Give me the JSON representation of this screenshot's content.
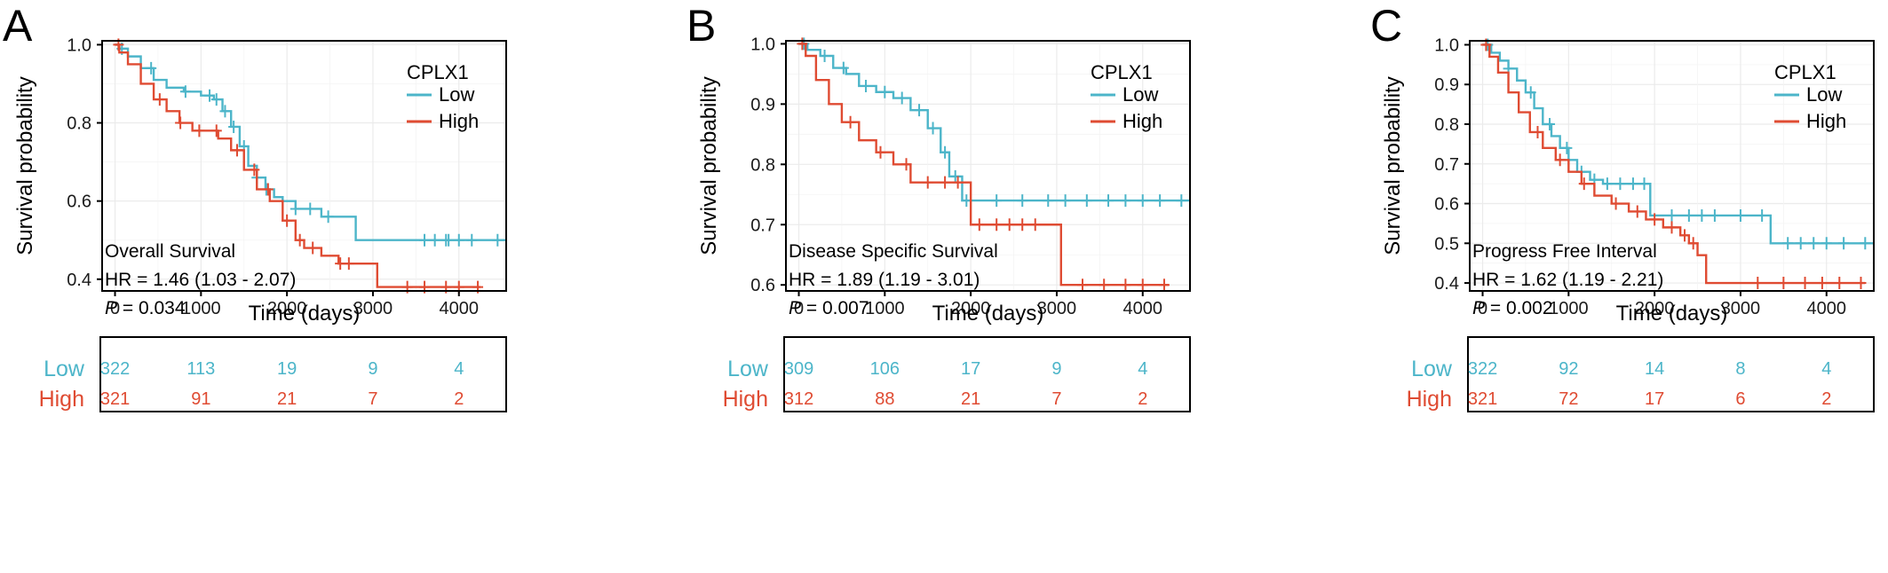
{
  "colors": {
    "low": "#4cb5c9",
    "high": "#df4b32",
    "grid": "#ebebeb",
    "axis": "#000000"
  },
  "chart_data": [
    {
      "type": "line",
      "panel_label": "A",
      "ylabel": "Survival probability",
      "xlabel": "Time (days)",
      "xlim": [
        -150,
        4550
      ],
      "ylim": [
        0.37,
        1.01
      ],
      "xticks": [
        0,
        1000,
        2000,
        3000,
        4000
      ],
      "yticks": [
        0.4,
        0.6,
        0.8,
        1.0
      ],
      "ytick_labels": [
        "0.4",
        "0.6",
        "0.8",
        "1.0"
      ],
      "grid": true,
      "legend": {
        "title": "CPLX1",
        "position": "top-right",
        "entries": [
          "Low",
          "High"
        ]
      },
      "annotation": {
        "name": "Overall Survival",
        "hr": "HR = 1.46 (1.03 -  2.07)",
        "p_label": "P",
        "p_value": " = 0.034"
      },
      "series": [
        {
          "name": "Low",
          "x": [
            0,
            50,
            150,
            300,
            450,
            600,
            800,
            1000,
            1150,
            1250,
            1350,
            1450,
            1550,
            1650,
            1750,
            1850,
            1950,
            2100,
            2400,
            2800,
            3500,
            4550
          ],
          "y": [
            1.0,
            0.99,
            0.97,
            0.94,
            0.91,
            0.89,
            0.88,
            0.87,
            0.86,
            0.83,
            0.79,
            0.74,
            0.69,
            0.66,
            0.63,
            0.61,
            0.6,
            0.58,
            0.56,
            0.5,
            0.5,
            0.5
          ],
          "censor": [
            80,
            420,
            820,
            1100,
            1180,
            1280,
            1380,
            1500,
            1650,
            1760,
            2100,
            2270,
            2480,
            3600,
            3720,
            3850,
            3880,
            4000,
            4150,
            4450
          ]
        },
        {
          "name": "High",
          "x": [
            0,
            50,
            150,
            300,
            450,
            600,
            750,
            900,
            1050,
            1200,
            1350,
            1500,
            1650,
            1800,
            1950,
            2100,
            2200,
            2400,
            2600,
            3050,
            4250
          ],
          "y": [
            1.0,
            0.98,
            0.95,
            0.9,
            0.86,
            0.83,
            0.8,
            0.78,
            0.78,
            0.76,
            0.73,
            0.68,
            0.63,
            0.6,
            0.55,
            0.5,
            0.48,
            0.46,
            0.44,
            0.38,
            0.38
          ],
          "censor": [
            40,
            520,
            760,
            980,
            1180,
            1420,
            1620,
            1780,
            2000,
            2150,
            2300,
            2620,
            2720,
            3400,
            3600,
            3850,
            4000,
            4220
          ]
        }
      ],
      "risk_table": {
        "rows": [
          {
            "name": "Low",
            "counts": [
              "322",
              "113",
              "19",
              "9",
              "4"
            ]
          },
          {
            "name": "High",
            "counts": [
              "321",
              "91",
              "21",
              "7",
              "2"
            ]
          }
        ]
      }
    },
    {
      "type": "line",
      "panel_label": "B",
      "ylabel": "Survival probability",
      "xlabel": "Time (days)",
      "xlim": [
        -150,
        4550
      ],
      "ylim": [
        0.59,
        1.005
      ],
      "xticks": [
        0,
        1000,
        2000,
        3000,
        4000
      ],
      "yticks": [
        0.6,
        0.7,
        0.8,
        0.9,
        1.0
      ],
      "ytick_labels": [
        "0.6",
        "0.7",
        "0.8",
        "0.9",
        "1.0"
      ],
      "grid": true,
      "legend": {
        "title": "CPLX1",
        "position": "top-right",
        "entries": [
          "Low",
          "High"
        ]
      },
      "annotation": {
        "name": "Disease Specific Survival",
        "hr": "HR = 1.89 (1.19 -  3.01)",
        "p_label": "P",
        "p_value": " = 0.007"
      },
      "series": [
        {
          "name": "Low",
          "x": [
            0,
            100,
            250,
            400,
            550,
            700,
            900,
            1100,
            1300,
            1500,
            1650,
            1750,
            1900,
            4550
          ],
          "y": [
            1.0,
            0.99,
            0.98,
            0.96,
            0.95,
            0.93,
            0.92,
            0.91,
            0.89,
            0.86,
            0.82,
            0.78,
            0.74,
            0.74
          ],
          "censor": [
            60,
            300,
            520,
            780,
            1000,
            1200,
            1400,
            1560,
            1700,
            1820,
            1950,
            2300,
            2600,
            2900,
            3100,
            3350,
            3600,
            3800,
            4000,
            4200,
            4450
          ]
        },
        {
          "name": "High",
          "x": [
            0,
            80,
            200,
            350,
            500,
            700,
            900,
            1100,
            1300,
            1900,
            2000,
            3050,
            4300
          ],
          "y": [
            1.0,
            0.98,
            0.94,
            0.9,
            0.87,
            0.84,
            0.82,
            0.8,
            0.77,
            0.77,
            0.7,
            0.6,
            0.6
          ],
          "censor": [
            40,
            600,
            950,
            1250,
            1500,
            1700,
            1850,
            2100,
            2300,
            2450,
            2600,
            2750,
            3300,
            3550,
            3800,
            4000,
            4250
          ]
        }
      ],
      "risk_table": {
        "rows": [
          {
            "name": "Low",
            "counts": [
              "309",
              "106",
              "17",
              "9",
              "4"
            ]
          },
          {
            "name": "High",
            "counts": [
              "312",
              "88",
              "21",
              "7",
              "2"
            ]
          }
        ]
      }
    },
    {
      "type": "line",
      "panel_label": "C",
      "ylabel": "Survival probability",
      "xlabel": "Time (days)",
      "xlim": [
        -150,
        4550
      ],
      "ylim": [
        0.38,
        1.01
      ],
      "xticks": [
        0,
        1000,
        2000,
        3000,
        4000
      ],
      "yticks": [
        0.4,
        0.5,
        0.6,
        0.7,
        0.8,
        0.9,
        1.0
      ],
      "ytick_labels": [
        "0.4",
        "0.5",
        "0.6",
        "0.7",
        "0.8",
        "0.9",
        "1.0"
      ],
      "grid": true,
      "legend": {
        "title": "CPLX1",
        "position": "top-right",
        "entries": [
          "Low",
          "High"
        ]
      },
      "annotation": {
        "name": "Progress Free Interval",
        "hr": "HR = 1.62 (1.19 -  2.21)",
        "p_label": "P",
        "p_value": " = 0.002"
      },
      "series": [
        {
          "name": "Low",
          "x": [
            0,
            100,
            200,
            300,
            400,
            500,
            600,
            700,
            800,
            900,
            1000,
            1100,
            1250,
            1400,
            1900,
            1950,
            3300,
            3350,
            4550
          ],
          "y": [
            1.0,
            0.98,
            0.96,
            0.94,
            0.91,
            0.88,
            0.84,
            0.8,
            0.77,
            0.74,
            0.71,
            0.68,
            0.66,
            0.65,
            0.65,
            0.57,
            0.57,
            0.5,
            0.5
          ],
          "censor": [
            60,
            300,
            560,
            780,
            980,
            1150,
            1300,
            1450,
            1600,
            1750,
            1880,
            2200,
            2400,
            2550,
            2700,
            3000,
            3250,
            3550,
            3700,
            3850,
            4000,
            4200,
            4450
          ]
        },
        {
          "name": "High",
          "x": [
            0,
            80,
            180,
            300,
            420,
            550,
            700,
            850,
            1000,
            1150,
            1300,
            1500,
            1700,
            1900,
            2100,
            2300,
            2400,
            2500,
            2600,
            4450
          ],
          "y": [
            1.0,
            0.97,
            0.93,
            0.88,
            0.83,
            0.78,
            0.74,
            0.71,
            0.68,
            0.65,
            0.62,
            0.6,
            0.58,
            0.56,
            0.54,
            0.52,
            0.5,
            0.47,
            0.4,
            0.4
          ],
          "censor": [
            40,
            640,
            900,
            1180,
            1550,
            1800,
            2000,
            2200,
            2350,
            2450,
            3200,
            3500,
            3750,
            3950,
            4150,
            4400
          ]
        }
      ],
      "risk_table": {
        "rows": [
          {
            "name": "Low",
            "counts": [
              "322",
              "92",
              "14",
              "8",
              "4"
            ]
          },
          {
            "name": "High",
            "counts": [
              "321",
              "72",
              "17",
              "6",
              "2"
            ]
          }
        ]
      }
    }
  ]
}
